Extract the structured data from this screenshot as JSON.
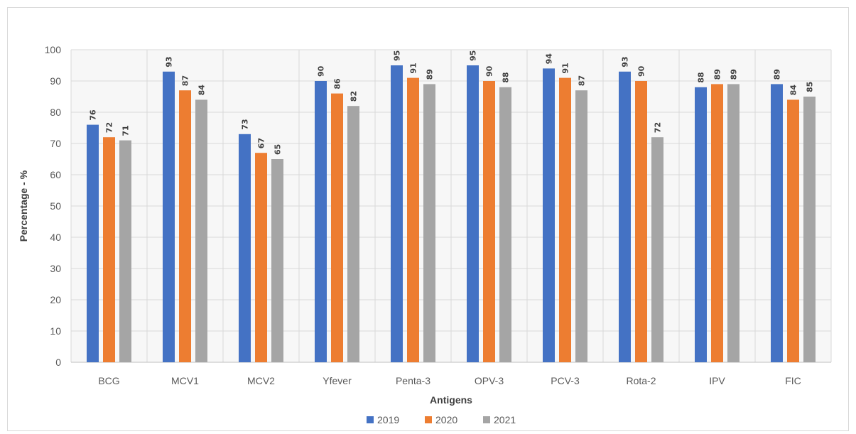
{
  "chart_data": {
    "type": "bar",
    "title": "",
    "xlabel": "Antigens",
    "ylabel": "Percentage - %",
    "ylim": [
      0,
      100
    ],
    "yticks": [
      0,
      10,
      20,
      30,
      40,
      50,
      60,
      70,
      80,
      90,
      100
    ],
    "grid": true,
    "legend_position": "bottom",
    "categories": [
      "BCG",
      "MCV1",
      "MCV2",
      "Yfever",
      "Penta-3",
      "OPV-3",
      "PCV-3",
      "Rota-2",
      "IPV",
      "FIC"
    ],
    "series": [
      {
        "name": "2019",
        "color": "#4472c4",
        "values": [
          76,
          93,
          73,
          90,
          95,
          95,
          94,
          93,
          88,
          89
        ]
      },
      {
        "name": "2020",
        "color": "#ed7d31",
        "values": [
          72,
          87,
          67,
          86,
          91,
          90,
          91,
          90,
          89,
          84
        ]
      },
      {
        "name": "2021",
        "color": "#a5a5a5",
        "values": [
          71,
          84,
          65,
          82,
          89,
          88,
          87,
          72,
          89,
          85
        ]
      }
    ]
  }
}
